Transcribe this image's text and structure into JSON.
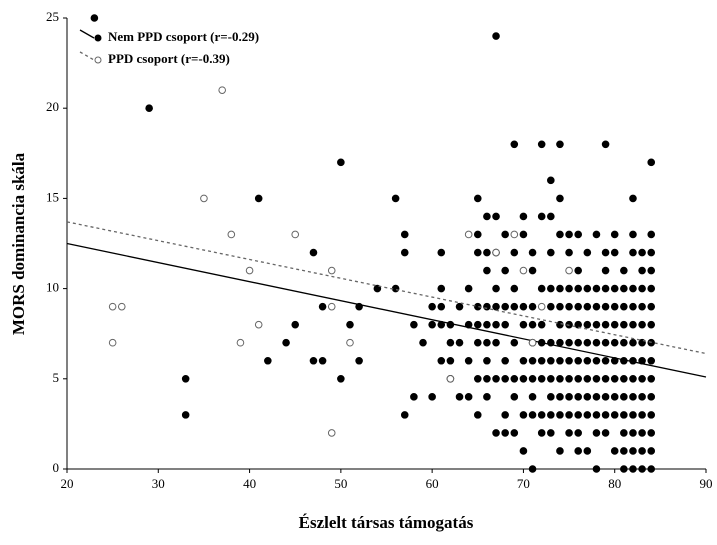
{
  "chart_data": {
    "type": "scatter",
    "x_label": "Észlelt társas támogatás",
    "y_label": "MORS   dominancia skála",
    "xlim": [
      20,
      90
    ],
    "xticks": [
      20,
      30,
      40,
      50,
      60,
      70,
      80,
      90
    ],
    "ylim": [
      0,
      25
    ],
    "yticks": [
      0,
      5,
      10,
      15,
      20,
      25
    ],
    "legend": "upper left",
    "series": [
      {
        "name": "Nem PPD csoport (r=-0.29)",
        "color": "#000000",
        "marker": "filled",
        "trend_style": "solid",
        "trend": [
          12.5,
          5.1
        ],
        "x": [
          23,
          29,
          33,
          33,
          41,
          42,
          44,
          45,
          47,
          47,
          48,
          48,
          50,
          50,
          51,
          52,
          52,
          54,
          56,
          56,
          57,
          57,
          57,
          58,
          58,
          59,
          60,
          60,
          60,
          61,
          61,
          61,
          61,
          61,
          62,
          62,
          62,
          62,
          63,
          63,
          63,
          64,
          64,
          64,
          64,
          65,
          65,
          65,
          65,
          65,
          65,
          65,
          65,
          66,
          66,
          66,
          66,
          66,
          66,
          66,
          66,
          66,
          67,
          67,
          67,
          67,
          67,
          67,
          67,
          67,
          67,
          68,
          68,
          68,
          68,
          68,
          68,
          68,
          68,
          69,
          69,
          69,
          69,
          69,
          69,
          69,
          69,
          70,
          70,
          70,
          70,
          70,
          70,
          70,
          70,
          71,
          71,
          71,
          71,
          71,
          71,
          71,
          71,
          71,
          71,
          72,
          72,
          72,
          72,
          72,
          72,
          72,
          72,
          72,
          73,
          73,
          73,
          73,
          73,
          73,
          73,
          73,
          73,
          73,
          73,
          74,
          74,
          74,
          74,
          74,
          74,
          74,
          74,
          74,
          74,
          74,
          74,
          75,
          75,
          75,
          75,
          75,
          75,
          75,
          75,
          75,
          75,
          75,
          76,
          76,
          76,
          76,
          76,
          76,
          76,
          76,
          76,
          76,
          76,
          76,
          77,
          77,
          77,
          77,
          77,
          77,
          77,
          77,
          77,
          77,
          78,
          78,
          78,
          78,
          78,
          78,
          78,
          78,
          78,
          78,
          78,
          79,
          79,
          79,
          79,
          79,
          79,
          79,
          79,
          79,
          79,
          79,
          79,
          80,
          80,
          80,
          80,
          80,
          80,
          80,
          80,
          80,
          80,
          80,
          81,
          81,
          81,
          81,
          81,
          81,
          81,
          81,
          81,
          81,
          81,
          81,
          82,
          82,
          82,
          82,
          82,
          82,
          82,
          82,
          82,
          82,
          82,
          82,
          82,
          82,
          83,
          83,
          83,
          83,
          83,
          83,
          83,
          83,
          83,
          83,
          83,
          83,
          83,
          84,
          84,
          84,
          84,
          84,
          84,
          84,
          84,
          84,
          84,
          84,
          84,
          84,
          84,
          84
        ],
        "values": [
          25,
          20,
          5,
          3,
          15,
          6,
          7,
          8,
          12,
          6,
          6,
          9,
          17,
          5,
          8,
          6,
          9,
          10,
          15,
          10,
          13,
          12,
          3,
          8,
          4,
          7,
          9,
          8,
          4,
          12,
          10,
          9,
          8,
          6,
          8,
          7,
          6,
          5,
          9,
          7,
          4,
          10,
          8,
          6,
          4,
          15,
          13,
          12,
          9,
          8,
          7,
          5,
          3,
          14,
          12,
          11,
          9,
          8,
          7,
          6,
          5,
          4,
          24,
          14,
          12,
          10,
          9,
          8,
          7,
          5,
          2,
          13,
          11,
          9,
          8,
          6,
          5,
          3,
          2,
          18,
          12,
          10,
          9,
          7,
          5,
          4,
          2,
          14,
          13,
          9,
          8,
          6,
          5,
          3,
          1,
          12,
          11,
          9,
          8,
          7,
          6,
          5,
          4,
          3,
          0,
          18,
          14,
          10,
          8,
          7,
          6,
          5,
          3,
          2,
          16,
          14,
          12,
          10,
          9,
          7,
          6,
          5,
          4,
          3,
          2,
          18,
          15,
          13,
          10,
          9,
          8,
          7,
          6,
          5,
          4,
          3,
          1,
          13,
          12,
          10,
          9,
          8,
          7,
          6,
          5,
          4,
          3,
          2,
          13,
          11,
          10,
          9,
          8,
          7,
          6,
          5,
          4,
          3,
          2,
          1,
          12,
          10,
          9,
          8,
          7,
          6,
          5,
          4,
          3,
          1,
          13,
          10,
          9,
          8,
          7,
          6,
          5,
          4,
          3,
          2,
          0,
          18,
          12,
          11,
          10,
          9,
          8,
          7,
          6,
          5,
          4,
          3,
          2,
          13,
          12,
          10,
          9,
          8,
          7,
          6,
          5,
          4,
          3,
          1,
          11,
          10,
          9,
          8,
          7,
          6,
          5,
          4,
          3,
          2,
          1,
          0,
          15,
          13,
          12,
          10,
          9,
          8,
          7,
          6,
          5,
          4,
          3,
          2,
          1,
          0,
          12,
          11,
          10,
          9,
          8,
          7,
          6,
          5,
          4,
          3,
          2,
          1,
          0,
          17,
          13,
          12,
          11,
          10,
          9,
          8,
          7,
          6,
          5,
          4,
          3,
          2,
          1,
          0
        ]
      },
      {
        "name": "PPD csoport (r=-0.39)",
        "color": "#666666",
        "marker": "open",
        "trend_style": "dashed",
        "trend": [
          13.7,
          6.4
        ],
        "x": [
          25,
          25,
          26,
          35,
          37,
          38,
          39,
          40,
          41,
          45,
          49,
          49,
          49,
          51,
          62,
          64,
          67,
          69,
          70,
          71,
          72,
          75
        ],
        "values": [
          9,
          7,
          9,
          15,
          21,
          13,
          7,
          11,
          8,
          13,
          11,
          9,
          2,
          7,
          5,
          13,
          12,
          13,
          11,
          7,
          9,
          11
        ]
      }
    ]
  }
}
